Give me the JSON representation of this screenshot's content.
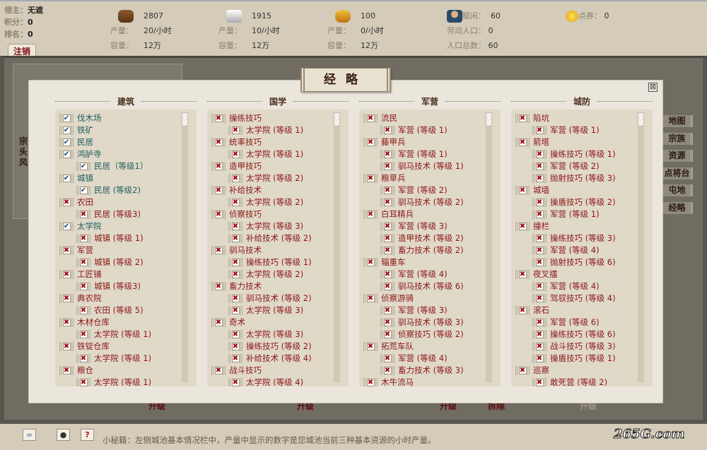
{
  "lord": {
    "lord_label": "领主：",
    "lord_value": "无遮",
    "score_label": "积分：",
    "score_value": "0",
    "rank_label": "排名：",
    "rank_value": "0"
  },
  "logout_label": "注销",
  "resources": [
    {
      "icon": "wood-icon",
      "amount": "2807",
      "output_label": "产量：",
      "output": "20/小时",
      "capacity_label": "容量：",
      "capacity": "12万"
    },
    {
      "icon": "iron-icon",
      "amount": "1915",
      "output_label": "产量：",
      "output": "10/小时",
      "capacity_label": "容量：",
      "capacity": "12万"
    },
    {
      "icon": "grain-icon",
      "amount": "100",
      "output_label": "产量：",
      "output": "0/小时",
      "capacity_label": "容量：",
      "capacity": "12万"
    }
  ],
  "population": {
    "idle_label": "赋闲：",
    "idle": "60",
    "labor_label": "劳动人口：",
    "labor": "0",
    "total_label": "人口总数：",
    "total": "60"
  },
  "coupons": {
    "label": "点券：",
    "value": "0"
  },
  "side_text": "宗头风",
  "right_nav": [
    "地图",
    "宗族",
    "资源",
    "点将台",
    "屯地",
    "经略"
  ],
  "background_buttons": [
    "升级",
    "升级",
    "升级",
    "拆除",
    "升级"
  ],
  "modal": {
    "title": "经略",
    "close": "⊠"
  },
  "colors": {
    "met": "#1f5f5f",
    "unmet": "#8b1515"
  },
  "columns": [
    {
      "title": "建筑",
      "items": [
        {
          "label": "伐木场",
          "ok": true,
          "children": []
        },
        {
          "label": "铁矿",
          "ok": true,
          "children": []
        },
        {
          "label": "民居",
          "ok": true,
          "children": []
        },
        {
          "label": "鸿胪寺",
          "ok": true,
          "children": [
            {
              "label": "民居（等级1）",
              "ok": true
            }
          ]
        },
        {
          "label": "城镇",
          "ok": true,
          "children": [
            {
              "label": "民居 (等级2)",
              "ok": true
            }
          ]
        },
        {
          "label": "农田",
          "ok": false,
          "children": [
            {
              "label": "民居 (等级3)",
              "ok": false
            }
          ]
        },
        {
          "label": "太学院",
          "ok": true,
          "children": [
            {
              "label": "城镇 (等级 1)",
              "ok": false
            }
          ]
        },
        {
          "label": "军营",
          "ok": false,
          "children": [
            {
              "label": "城镇 (等级 2)",
              "ok": false
            }
          ]
        },
        {
          "label": "工匠铺",
          "ok": false,
          "children": [
            {
              "label": "城镇 (等级3)",
              "ok": false
            }
          ]
        },
        {
          "label": "典农院",
          "ok": false,
          "children": [
            {
              "label": "农田 (等级 5)",
              "ok": false
            }
          ]
        },
        {
          "label": "木材仓库",
          "ok": false,
          "children": [
            {
              "label": "太学院 (等级 1)",
              "ok": false
            }
          ]
        },
        {
          "label": "铁锭仓库",
          "ok": false,
          "children": [
            {
              "label": "太学院 (等级 1)",
              "ok": false
            }
          ]
        },
        {
          "label": "粮仓",
          "ok": false,
          "children": [
            {
              "label": "太学院 (等级 1)",
              "ok": false
            }
          ]
        }
      ]
    },
    {
      "title": "国学",
      "items": [
        {
          "label": "操练技巧",
          "ok": false,
          "children": [
            {
              "label": "太学院 (等级 1)",
              "ok": false
            }
          ]
        },
        {
          "label": "统率技巧",
          "ok": false,
          "children": [
            {
              "label": "太学院 (等级 1)",
              "ok": false
            }
          ]
        },
        {
          "label": "造甲技巧",
          "ok": false,
          "children": [
            {
              "label": "太学院 (等级 2)",
              "ok": false
            }
          ]
        },
        {
          "label": "补给技术",
          "ok": false,
          "children": [
            {
              "label": "太学院 (等级 2)",
              "ok": false
            }
          ]
        },
        {
          "label": "侦察技巧",
          "ok": false,
          "children": [
            {
              "label": "太学院 (等级 3)",
              "ok": false
            },
            {
              "label": "补给技术 (等级 2)",
              "ok": false
            }
          ]
        },
        {
          "label": "驯马技术",
          "ok": false,
          "children": [
            {
              "label": "操练技巧 (等级 1)",
              "ok": false
            },
            {
              "label": "太学院 (等级 2)",
              "ok": false
            }
          ]
        },
        {
          "label": "畜力技术",
          "ok": false,
          "children": [
            {
              "label": "驯马技术 (等级 2)",
              "ok": false
            },
            {
              "label": "太学院 (等级 3)",
              "ok": false
            }
          ]
        },
        {
          "label": "奇术",
          "ok": false,
          "children": [
            {
              "label": "太学院 (等级 3)",
              "ok": false
            },
            {
              "label": "操练技巧 (等级 2)",
              "ok": false
            },
            {
              "label": "补给技术 (等级 4)",
              "ok": false
            }
          ]
        },
        {
          "label": "战斗技巧",
          "ok": false,
          "children": [
            {
              "label": "太学院 (等级 4)",
              "ok": false
            }
          ]
        }
      ]
    },
    {
      "title": "军营",
      "items": [
        {
          "label": "流民",
          "ok": false,
          "children": [
            {
              "label": "军营 (等级 1)",
              "ok": false
            }
          ]
        },
        {
          "label": "藤甲兵",
          "ok": false,
          "children": [
            {
              "label": "军营 (等级 1)",
              "ok": false
            },
            {
              "label": "驯马技术 (等级 1)",
              "ok": false
            }
          ]
        },
        {
          "label": "粮草兵",
          "ok": false,
          "children": [
            {
              "label": "军营 (等级 2)",
              "ok": false
            },
            {
              "label": "驯马技术 (等级 2)",
              "ok": false
            }
          ]
        },
        {
          "label": "白耳精兵",
          "ok": false,
          "children": [
            {
              "label": "军营 (等级 3)",
              "ok": false
            },
            {
              "label": "造甲技术 (等级 2)",
              "ok": false
            },
            {
              "label": "畜力技术 (等级 2)",
              "ok": false
            }
          ]
        },
        {
          "label": "辎重车",
          "ok": false,
          "children": [
            {
              "label": "军营 (等级 4)",
              "ok": false
            },
            {
              "label": "驯马技术 (等级 6)",
              "ok": false
            }
          ]
        },
        {
          "label": "侦察游骑",
          "ok": false,
          "children": [
            {
              "label": "军营 (等级 3)",
              "ok": false
            },
            {
              "label": "驯马技术 (等级 3)",
              "ok": false
            },
            {
              "label": "侦察技巧 (等级 2)",
              "ok": false
            }
          ]
        },
        {
          "label": "拓荒车队",
          "ok": false,
          "children": [
            {
              "label": "军营 (等级 4)",
              "ok": false
            },
            {
              "label": "畜力技术 (等级 3)",
              "ok": false
            }
          ]
        },
        {
          "label": "木牛流马",
          "ok": false,
          "children": []
        }
      ]
    },
    {
      "title": "城防",
      "items": [
        {
          "label": "陷坑",
          "ok": false,
          "children": [
            {
              "label": "军营 (等级 1)",
              "ok": false
            }
          ]
        },
        {
          "label": "箭塔",
          "ok": false,
          "children": [
            {
              "label": "操练技巧 (等级 1)",
              "ok": false
            },
            {
              "label": "军营 (等级 2)",
              "ok": false
            },
            {
              "label": "抛射技巧 (等级 3)",
              "ok": false
            }
          ]
        },
        {
          "label": "城墙",
          "ok": false,
          "children": [
            {
              "label": "操盾技巧 (等级 2)",
              "ok": false
            },
            {
              "label": "军营 (等级 1)",
              "ok": false
            }
          ]
        },
        {
          "label": "撞栏",
          "ok": false,
          "children": [
            {
              "label": "操练技巧 (等级 3)",
              "ok": false
            },
            {
              "label": "军营 (等级 4)",
              "ok": false
            },
            {
              "label": "抛射技巧 (等级 6)",
              "ok": false
            }
          ]
        },
        {
          "label": "夜叉擂",
          "ok": false,
          "children": [
            {
              "label": "军营 (等级 4)",
              "ok": false
            },
            {
              "label": "驾驭技巧 (等级 4)",
              "ok": false
            }
          ]
        },
        {
          "label": "滚石",
          "ok": false,
          "children": [
            {
              "label": "军营 (等级 6)",
              "ok": false
            },
            {
              "label": "操练技巧 (等级 6)",
              "ok": false
            },
            {
              "label": "战斗技巧 (等级 3)",
              "ok": false
            },
            {
              "label": "操盾技巧 (等级 1)",
              "ok": false
            }
          ]
        },
        {
          "label": "巡察",
          "ok": false,
          "children": [
            {
              "label": "敢死营 (等级 2)",
              "ok": false
            }
          ]
        }
      ]
    }
  ],
  "bottom": {
    "icons": [
      "link-icon",
      "chat-icon",
      "help-icon"
    ],
    "help_glyph": "?",
    "tip": "小秘籍：左侧城池基本情况栏中，产量中显示的数字是您城池当前三种基本资源的小时产量。",
    "logo": "265G.com"
  }
}
